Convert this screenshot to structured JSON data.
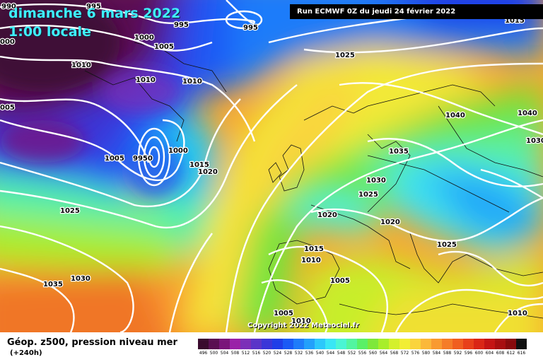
{
  "header": {
    "date": "dimanche 6 mars 2022",
    "time": "1:00 locale",
    "run": "Run ECMWF 0Z du jeudi 24 février 2022"
  },
  "isobars": [
    {
      "label": "990"
    },
    {
      "label": "995"
    },
    {
      "label": "995"
    },
    {
      "label": "995"
    },
    {
      "label": "1000"
    },
    {
      "label": "1005"
    },
    {
      "label": "1010"
    },
    {
      "label": "1010"
    },
    {
      "label": "1010"
    },
    {
      "label": "1005"
    },
    {
      "label": "1005"
    },
    {
      "label": "9950"
    },
    {
      "label": "1000"
    },
    {
      "label": "1015"
    },
    {
      "label": "1020"
    },
    {
      "label": "1025"
    },
    {
      "label": "1025"
    },
    {
      "label": "1035"
    },
    {
      "label": "1030"
    },
    {
      "label": "1015"
    },
    {
      "label": "1040"
    },
    {
      "label": "1040"
    },
    {
      "label": "1030"
    },
    {
      "label": "1035"
    },
    {
      "label": "1030"
    },
    {
      "label": "1025"
    },
    {
      "label": "1020"
    },
    {
      "label": "1020"
    },
    {
      "label": "1025"
    },
    {
      "label": "1015"
    },
    {
      "label": "1010"
    },
    {
      "label": "1005"
    },
    {
      "label": "1005"
    },
    {
      "label": "1010"
    },
    {
      "label": "1010"
    },
    {
      "label": "000"
    },
    {
      "label": "005"
    }
  ],
  "copyright": "Copyright 2022 Meteociel.fr",
  "footer": {
    "title": "Géop. z500, pression niveau mer",
    "subtitle": "(+240h)"
  },
  "scale": [
    {
      "v": "496",
      "c": "#3a0a2e"
    },
    {
      "v": "500",
      "c": "#5a0f52"
    },
    {
      "v": "504",
      "c": "#7a157a"
    },
    {
      "v": "508",
      "c": "#9a22a8"
    },
    {
      "v": "512",
      "c": "#7b2fb8"
    },
    {
      "v": "516",
      "c": "#5a35c8"
    },
    {
      "v": "520",
      "c": "#3a36d8"
    },
    {
      "v": "524",
      "c": "#1f3ee8"
    },
    {
      "v": "528",
      "c": "#1a5af5"
    },
    {
      "v": "532",
      "c": "#1e7cfa"
    },
    {
      "v": "536",
      "c": "#22a0fb"
    },
    {
      "v": "540",
      "c": "#2cc8fb"
    },
    {
      "v": "544",
      "c": "#39e6f5"
    },
    {
      "v": "548",
      "c": "#4af5d4"
    },
    {
      "v": "552",
      "c": "#52f5a0"
    },
    {
      "v": "556",
      "c": "#5af066"
    },
    {
      "v": "560",
      "c": "#7ee83a"
    },
    {
      "v": "564",
      "c": "#a8ee2a"
    },
    {
      "v": "568",
      "c": "#d4f02c"
    },
    {
      "v": "572",
      "c": "#f2ee34"
    },
    {
      "v": "576",
      "c": "#fad43c"
    },
    {
      "v": "580",
      "c": "#fbb83a"
    },
    {
      "v": "584",
      "c": "#f99a30"
    },
    {
      "v": "588",
      "c": "#f57c28"
    },
    {
      "v": "592",
      "c": "#f05e20"
    },
    {
      "v": "596",
      "c": "#e8401a"
    },
    {
      "v": "600",
      "c": "#da2616"
    },
    {
      "v": "604",
      "c": "#c41414"
    },
    {
      "v": "608",
      "c": "#a80e10"
    },
    {
      "v": "612",
      "c": "#880a0c"
    },
    {
      "v": "616",
      "c": "#101010"
    }
  ]
}
